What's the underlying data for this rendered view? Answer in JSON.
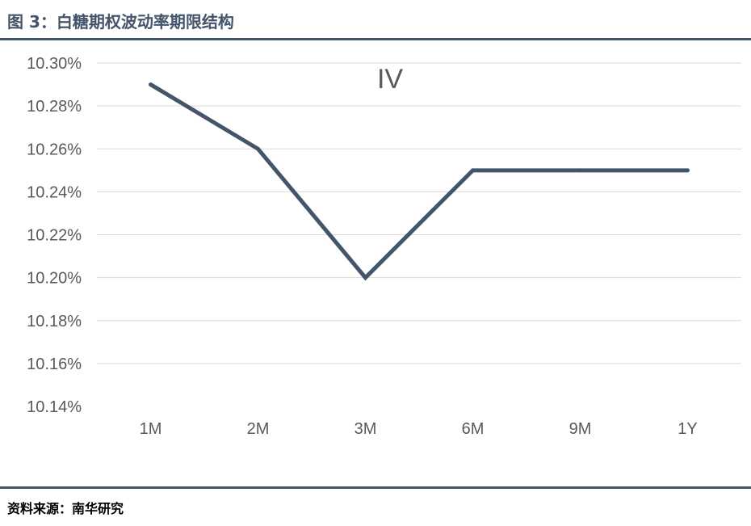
{
  "figure": {
    "title": "图 3：白糖期权波动率期限结构",
    "source": "资料来源：南华研究"
  },
  "colors": {
    "title": "#44546a",
    "line": "#44546a",
    "grid": "#d9d9d9",
    "tick_text": "#595959"
  },
  "chart_data": {
    "type": "line",
    "categories": [
      "1M",
      "2M",
      "3M",
      "6M",
      "9M",
      "1Y"
    ],
    "series": [
      {
        "name": "IV",
        "values": [
          10.29,
          10.26,
          10.2,
          10.25,
          10.25,
          10.25
        ]
      }
    ],
    "ylim": [
      10.14,
      10.3
    ],
    "y_ticks": [
      "10.14%",
      "10.16%",
      "10.18%",
      "10.20%",
      "10.22%",
      "10.24%",
      "10.26%",
      "10.28%",
      "10.30%"
    ],
    "grid": true,
    "legend": "top-center",
    "xlabel": "",
    "ylabel": ""
  }
}
